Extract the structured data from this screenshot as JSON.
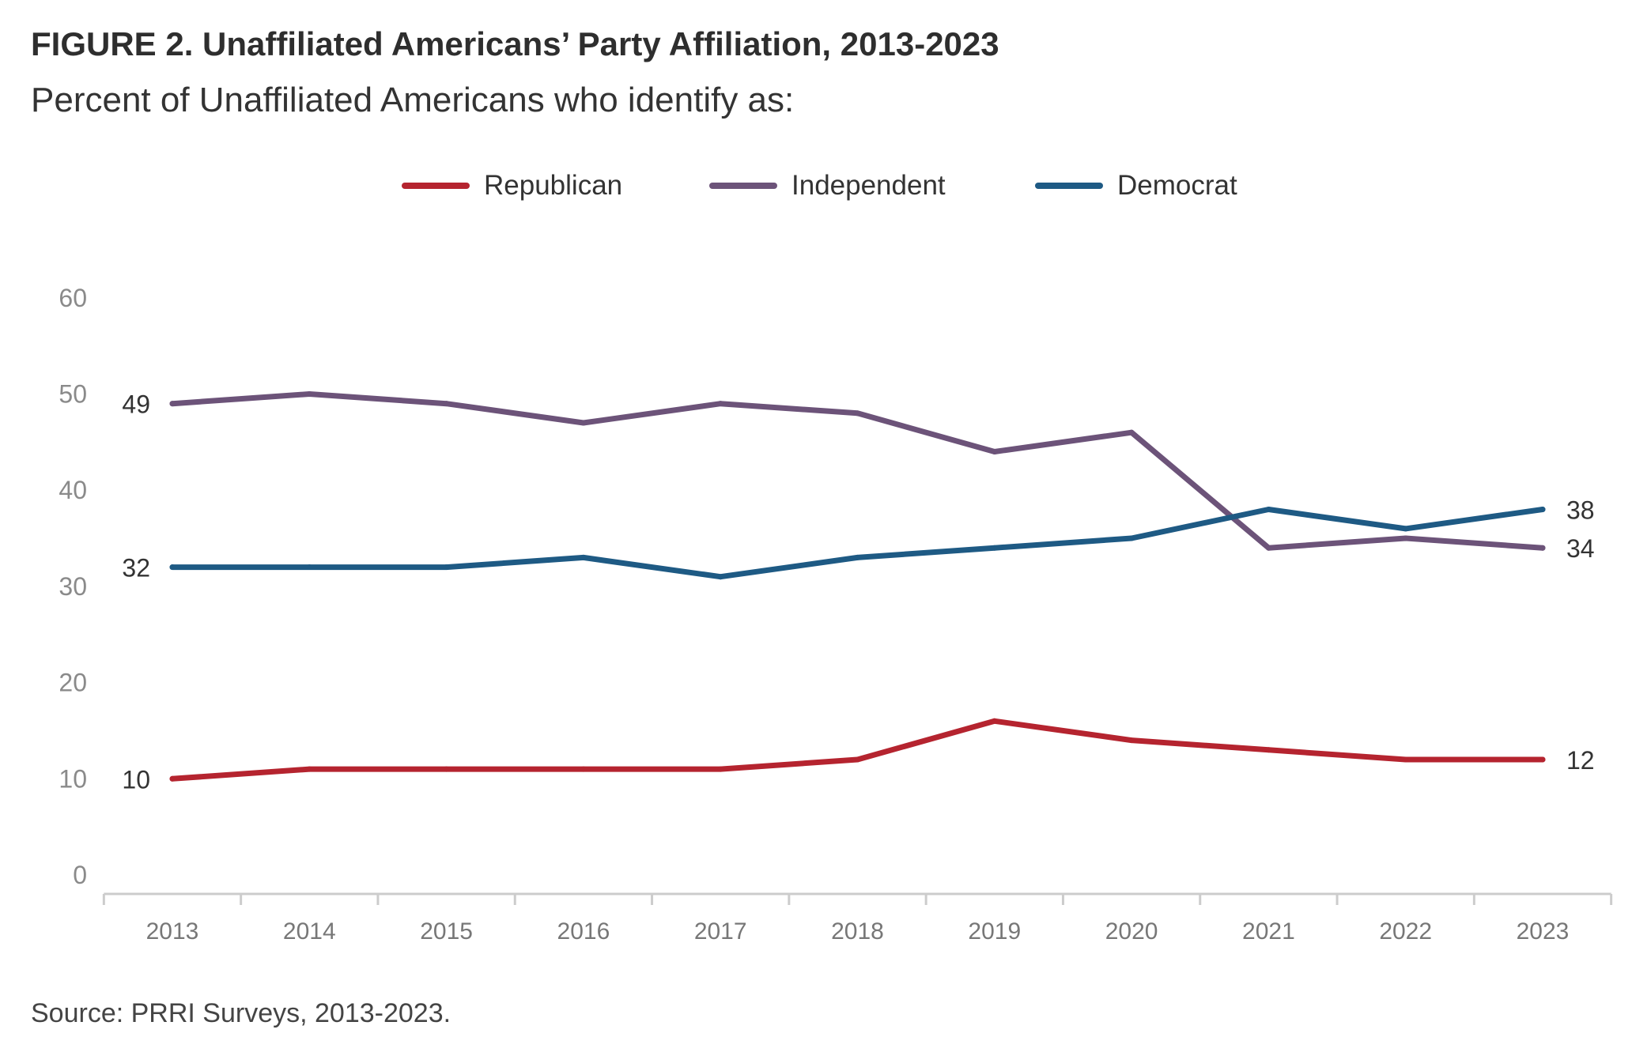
{
  "header": {
    "title": "FIGURE 2.  Unaffiliated Americans’ Party Affiliation, 2013-2023",
    "subtitle": "Percent of Unaffiliated Americans who identify as:"
  },
  "footer": {
    "source": "Source: PRRI Surveys, 2013-2023."
  },
  "chart_data": {
    "type": "line",
    "title": "FIGURE 2.  Unaffiliated Americans’ Party Affiliation, 2013-2023",
    "subtitle": "Percent of Unaffiliated Americans who identify as:",
    "xlabel": "",
    "ylabel": "",
    "ylim": [
      0,
      60
    ],
    "yticks": [
      "0",
      "10",
      "20",
      "30",
      "40",
      "50",
      "60"
    ],
    "categories": [
      "2013",
      "2014",
      "2015",
      "2016",
      "2017",
      "2018",
      "2019",
      "2020",
      "2021",
      "2022",
      "2023"
    ],
    "legend_position": "top-center",
    "grid": false,
    "series": [
      {
        "name": "Republican",
        "color": "#b5242f",
        "values": [
          10,
          11,
          11,
          11,
          11,
          12,
          16,
          14,
          13,
          12,
          12
        ],
        "start_label": "10",
        "end_label": "12"
      },
      {
        "name": "Independent",
        "color": "#6c5379",
        "values": [
          49,
          50,
          49,
          47,
          49,
          48,
          44,
          46,
          34,
          35,
          34
        ],
        "start_label": "49",
        "end_label": "34"
      },
      {
        "name": "Democrat",
        "color": "#1e5a84",
        "values": [
          32,
          32,
          32,
          33,
          31,
          33,
          34,
          35,
          38,
          36,
          38
        ],
        "start_label": "32",
        "end_label": "38"
      }
    ]
  }
}
